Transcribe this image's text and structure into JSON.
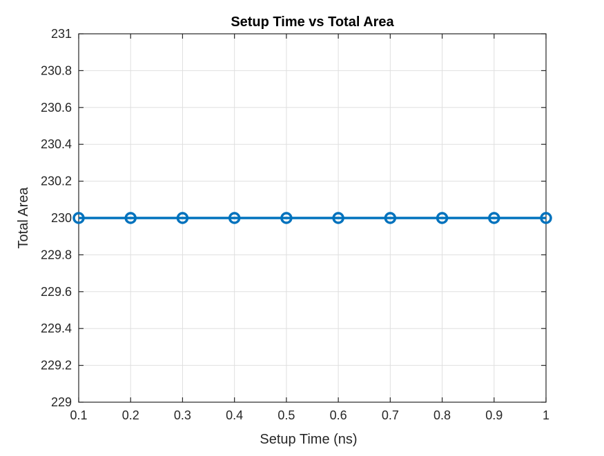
{
  "chart_data": {
    "type": "line",
    "title": "Setup Time vs Total Area",
    "xlabel": "Setup Time (ns)",
    "ylabel": "Total Area",
    "xlim": [
      0.1,
      1
    ],
    "ylim": [
      229,
      231
    ],
    "xticks": [
      0.1,
      0.2,
      0.3,
      0.4,
      0.5,
      0.6,
      0.7,
      0.8,
      0.9,
      1
    ],
    "xtick_labels": [
      "0.1",
      "0.2",
      "0.3",
      "0.4",
      "0.5",
      "0.6",
      "0.7",
      "0.8",
      "0.9",
      "1"
    ],
    "yticks": [
      229,
      229.2,
      229.4,
      229.6,
      229.8,
      230,
      230.2,
      230.4,
      230.6,
      230.8,
      231
    ],
    "ytick_labels": [
      "229",
      "229.2",
      "229.4",
      "229.6",
      "229.8",
      "230",
      "230.2",
      "230.4",
      "230.6",
      "230.8",
      "231"
    ],
    "grid": true,
    "legend": "none",
    "series": [
      {
        "x": [
          0.1,
          0.2,
          0.3,
          0.4,
          0.5,
          0.6,
          0.7,
          0.8,
          0.9,
          1
        ],
        "y": [
          230,
          230,
          230,
          230,
          230,
          230,
          230,
          230,
          230,
          230
        ],
        "color": "#0072BD",
        "marker": "circle"
      }
    ]
  }
}
